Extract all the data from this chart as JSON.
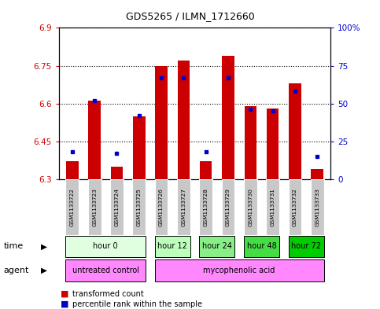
{
  "title": "GDS5265 / ILMN_1712660",
  "samples": [
    "GSM1133722",
    "GSM1133723",
    "GSM1133724",
    "GSM1133725",
    "GSM1133726",
    "GSM1133727",
    "GSM1133728",
    "GSM1133729",
    "GSM1133730",
    "GSM1133731",
    "GSM1133732",
    "GSM1133733"
  ],
  "transformed_count": [
    6.37,
    6.61,
    6.35,
    6.55,
    6.75,
    6.77,
    6.37,
    6.79,
    6.59,
    6.58,
    6.68,
    6.34
  ],
  "percentile_rank": [
    18,
    52,
    17,
    42,
    67,
    67,
    18,
    67,
    46,
    45,
    58,
    15
  ],
  "ylim_left": [
    6.3,
    6.9
  ],
  "ylim_right": [
    0,
    100
  ],
  "yticks_left": [
    6.3,
    6.45,
    6.6,
    6.75,
    6.9
  ],
  "yticks_right": [
    0,
    25,
    50,
    75,
    100
  ],
  "ytick_labels_left": [
    "6.3",
    "6.45",
    "6.6",
    "6.75",
    "6.9"
  ],
  "ytick_labels_right": [
    "0",
    "25",
    "50",
    "75",
    "100%"
  ],
  "bar_bottom": 6.3,
  "bar_color": "#cc0000",
  "dot_color": "#0000cc",
  "grid_color": "#000000",
  "time_groups": [
    {
      "label": "hour 0",
      "indices": [
        0,
        1,
        2,
        3
      ],
      "color": "#e0ffe0"
    },
    {
      "label": "hour 12",
      "indices": [
        4,
        5
      ],
      "color": "#bbffbb"
    },
    {
      "label": "hour 24",
      "indices": [
        6,
        7
      ],
      "color": "#88ee88"
    },
    {
      "label": "hour 48",
      "indices": [
        8,
        9
      ],
      "color": "#44dd44"
    },
    {
      "label": "hour 72",
      "indices": [
        10,
        11
      ],
      "color": "#00cc00"
    }
  ],
  "agent_groups": [
    {
      "label": "untreated control",
      "indices": [
        0,
        1,
        2,
        3
      ],
      "color": "#ff88ff"
    },
    {
      "label": "mycophenolic acid",
      "indices": [
        4,
        5,
        6,
        7,
        8,
        9,
        10,
        11
      ],
      "color": "#ff88ff"
    }
  ],
  "legend_items": [
    {
      "label": "transformed count",
      "color": "#cc0000"
    },
    {
      "label": "percentile rank within the sample",
      "color": "#0000cc"
    }
  ],
  "bar_width": 0.55,
  "fig_bg": "#ffffff",
  "ax_bg": "#ffffff",
  "sample_box_color": "#c8c8c8"
}
